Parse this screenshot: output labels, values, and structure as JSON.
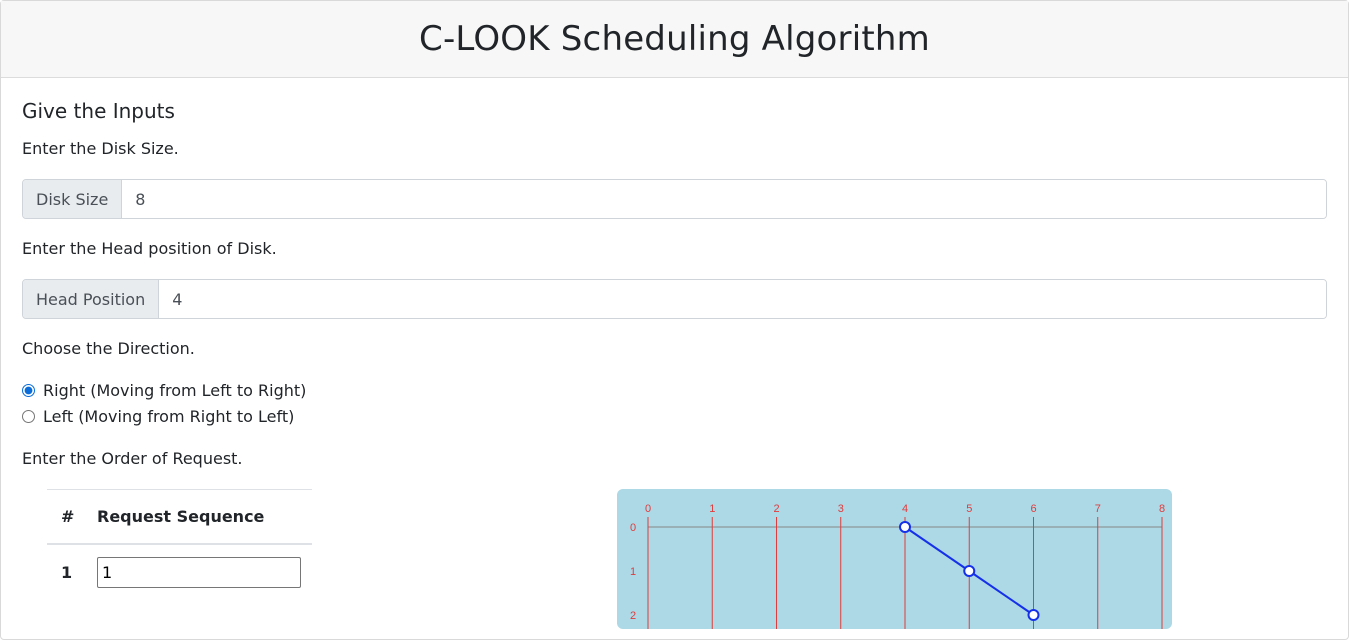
{
  "header": {
    "title": "C-LOOK Scheduling Algorithm"
  },
  "inputs": {
    "section_title": "Give the Inputs",
    "disk_size_prompt": "Enter the Disk Size.",
    "disk_size_label": "Disk Size",
    "disk_size_value": "8",
    "head_prompt": "Enter the Head position of Disk.",
    "head_label": "Head Position",
    "head_value": "4",
    "direction_prompt": "Choose the Direction.",
    "direction_options": [
      {
        "label": "Right (Moving from Left to Right)",
        "checked": true
      },
      {
        "label": "Left (Moving from Right to Left)",
        "checked": false
      }
    ],
    "order_prompt": "Enter the Order of Request."
  },
  "request_table": {
    "headers": [
      "#",
      "Request Sequence"
    ],
    "rows": [
      {
        "index": "1",
        "value": "1"
      }
    ]
  },
  "chart_data": {
    "type": "line",
    "x_ticks": [
      "0",
      "1",
      "2",
      "3",
      "4",
      "5",
      "6",
      "7",
      "8"
    ],
    "y_ticks": [
      "0",
      "1",
      "2"
    ],
    "xlim": [
      0,
      8
    ],
    "points": [
      {
        "x": 4,
        "y": 0
      },
      {
        "x": 5,
        "y": 1
      },
      {
        "x": 6,
        "y": 2
      }
    ],
    "colors": {
      "background": "#add8e6",
      "grid": "#e03c3c",
      "line": "#1530e8",
      "tick_text": "#e03c3c"
    }
  }
}
